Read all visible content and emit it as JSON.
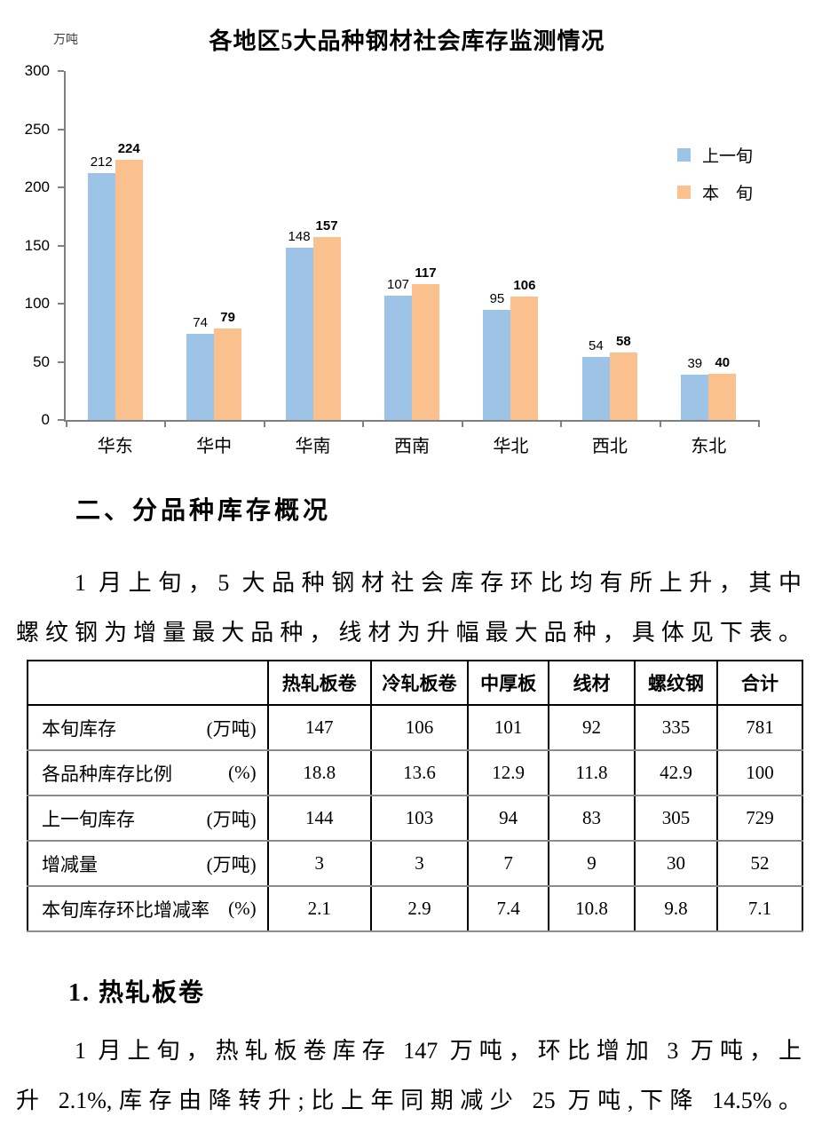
{
  "chart_data": {
    "type": "bar",
    "title": "各地区5大品种钢材社会库存监测情况",
    "unit_label": "万吨",
    "categories": [
      "华东",
      "华中",
      "华南",
      "西南",
      "华北",
      "西北",
      "东北"
    ],
    "series": [
      {
        "name": "上一旬",
        "color": "#9DC3E6",
        "values": [
          212,
          74,
          148,
          107,
          95,
          54,
          39
        ]
      },
      {
        "name": "本　旬",
        "color": "#FAC08D",
        "values": [
          224,
          79,
          157,
          117,
          106,
          58,
          40
        ]
      }
    ],
    "ylim": [
      0,
      300
    ],
    "ytick_interval": 50,
    "grid": false,
    "legend_position": "right",
    "axis_color": "#808080"
  },
  "sections": {
    "overview_heading": "二、分品种库存概况",
    "overview_paragraph_lines": [
      "1 月上旬，5 大品种钢材社会库存环比均有所上升，其中",
      "螺纹钢为增量最大品种，线材为升幅最大品种，具体见下表。"
    ],
    "hot_rolled_heading": "1. 热轧板卷",
    "hot_rolled_paragraph_lines": [
      "1 月上旬，热轧板卷库存 147 万吨，环比增加 3 万吨，上",
      "升 2.1%,库存由降转升;比上年同期减少 25 万吨,下降 14.5%。"
    ]
  },
  "table": {
    "header": [
      "",
      "热轧板卷",
      "冷轧板卷",
      "中厚板",
      "线材",
      "螺纹钢",
      "合计"
    ],
    "rows": [
      {
        "label": "本旬库存",
        "unit": "(万吨)",
        "values": [
          "147",
          "106",
          "101",
          "92",
          "335",
          "781"
        ]
      },
      {
        "label": "各品种库存比例",
        "unit": "(%)",
        "values": [
          "18.8",
          "13.6",
          "12.9",
          "11.8",
          "42.9",
          "100"
        ]
      },
      {
        "label": "上一旬库存",
        "unit": "(万吨)",
        "values": [
          "144",
          "103",
          "94",
          "83",
          "305",
          "729"
        ]
      },
      {
        "label": "增减量",
        "unit": "(万吨)",
        "values": [
          "3",
          "3",
          "7",
          "9",
          "30",
          "52"
        ]
      },
      {
        "label": "本旬库存环比增减率",
        "unit": "(%)",
        "values": [
          "2.1",
          "2.9",
          "7.4",
          "10.8",
          "9.8",
          "7.1"
        ]
      }
    ]
  }
}
